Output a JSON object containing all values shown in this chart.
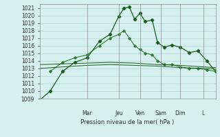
{
  "xlabel": "Pression niveau de la mer( hPa )",
  "ylim": [
    1009,
    1021.5
  ],
  "yticks": [
    1009,
    1010,
    1011,
    1012,
    1013,
    1014,
    1015,
    1016,
    1017,
    1018,
    1019,
    1020,
    1021
  ],
  "bg_color": "#d6f0ef",
  "grid_color": "#b0d8d8",
  "line_color_dark": "#1a5c1a",
  "line_color_mid": "#2e7d2e",
  "day_labels": [
    "Mar",
    "Jeu",
    "Ven",
    "Sam",
    "Dim",
    "L"
  ],
  "day_positions": [
    0.27,
    0.45,
    0.57,
    0.69,
    0.8,
    0.93
  ],
  "series1": {
    "x": [
      0,
      0.06,
      0.13,
      0.2,
      0.27,
      0.34,
      0.4,
      0.45,
      0.48,
      0.51,
      0.54,
      0.57,
      0.6,
      0.64,
      0.67,
      0.71,
      0.75,
      0.8,
      0.85,
      0.9,
      0.95,
      1.0
    ],
    "y": [
      1008.8,
      1010.0,
      1012.6,
      1013.8,
      1014.4,
      1016.6,
      1017.5,
      1019.9,
      1021.0,
      1021.1,
      1019.5,
      1020.3,
      1019.2,
      1019.4,
      1016.4,
      1015.8,
      1016.1,
      1015.8,
      1015.1,
      1015.3,
      1014.0,
      1012.6
    ]
  },
  "series2": {
    "x": [
      0.06,
      0.13,
      0.2,
      0.27,
      0.34,
      0.4,
      0.45,
      0.48,
      0.51,
      0.54,
      0.57,
      0.6,
      0.64,
      0.67,
      0.71,
      0.75,
      0.8,
      0.85,
      0.9,
      0.95,
      1.0
    ],
    "y": [
      1012.6,
      1013.8,
      1014.4,
      1014.8,
      1016.0,
      1017.0,
      1017.5,
      1018.0,
      1017.0,
      1016.0,
      1015.5,
      1015.0,
      1014.8,
      1014.0,
      1013.5,
      1013.5,
      1013.2,
      1013.0,
      1013.0,
      1012.8,
      1012.6
    ]
  },
  "series3": {
    "x": [
      0.0,
      0.13,
      0.27,
      0.4,
      0.54,
      0.67,
      0.8,
      0.93,
      1.0
    ],
    "y": [
      1013.0,
      1013.2,
      1013.4,
      1013.5,
      1013.4,
      1013.3,
      1013.1,
      1013.0,
      1012.9
    ]
  },
  "series4": {
    "x": [
      0.0,
      0.13,
      0.27,
      0.4,
      0.54,
      0.67,
      0.8,
      0.93,
      1.0
    ],
    "y": [
      1013.5,
      1013.6,
      1013.7,
      1013.8,
      1013.7,
      1013.5,
      1013.4,
      1013.2,
      1013.1
    ]
  }
}
